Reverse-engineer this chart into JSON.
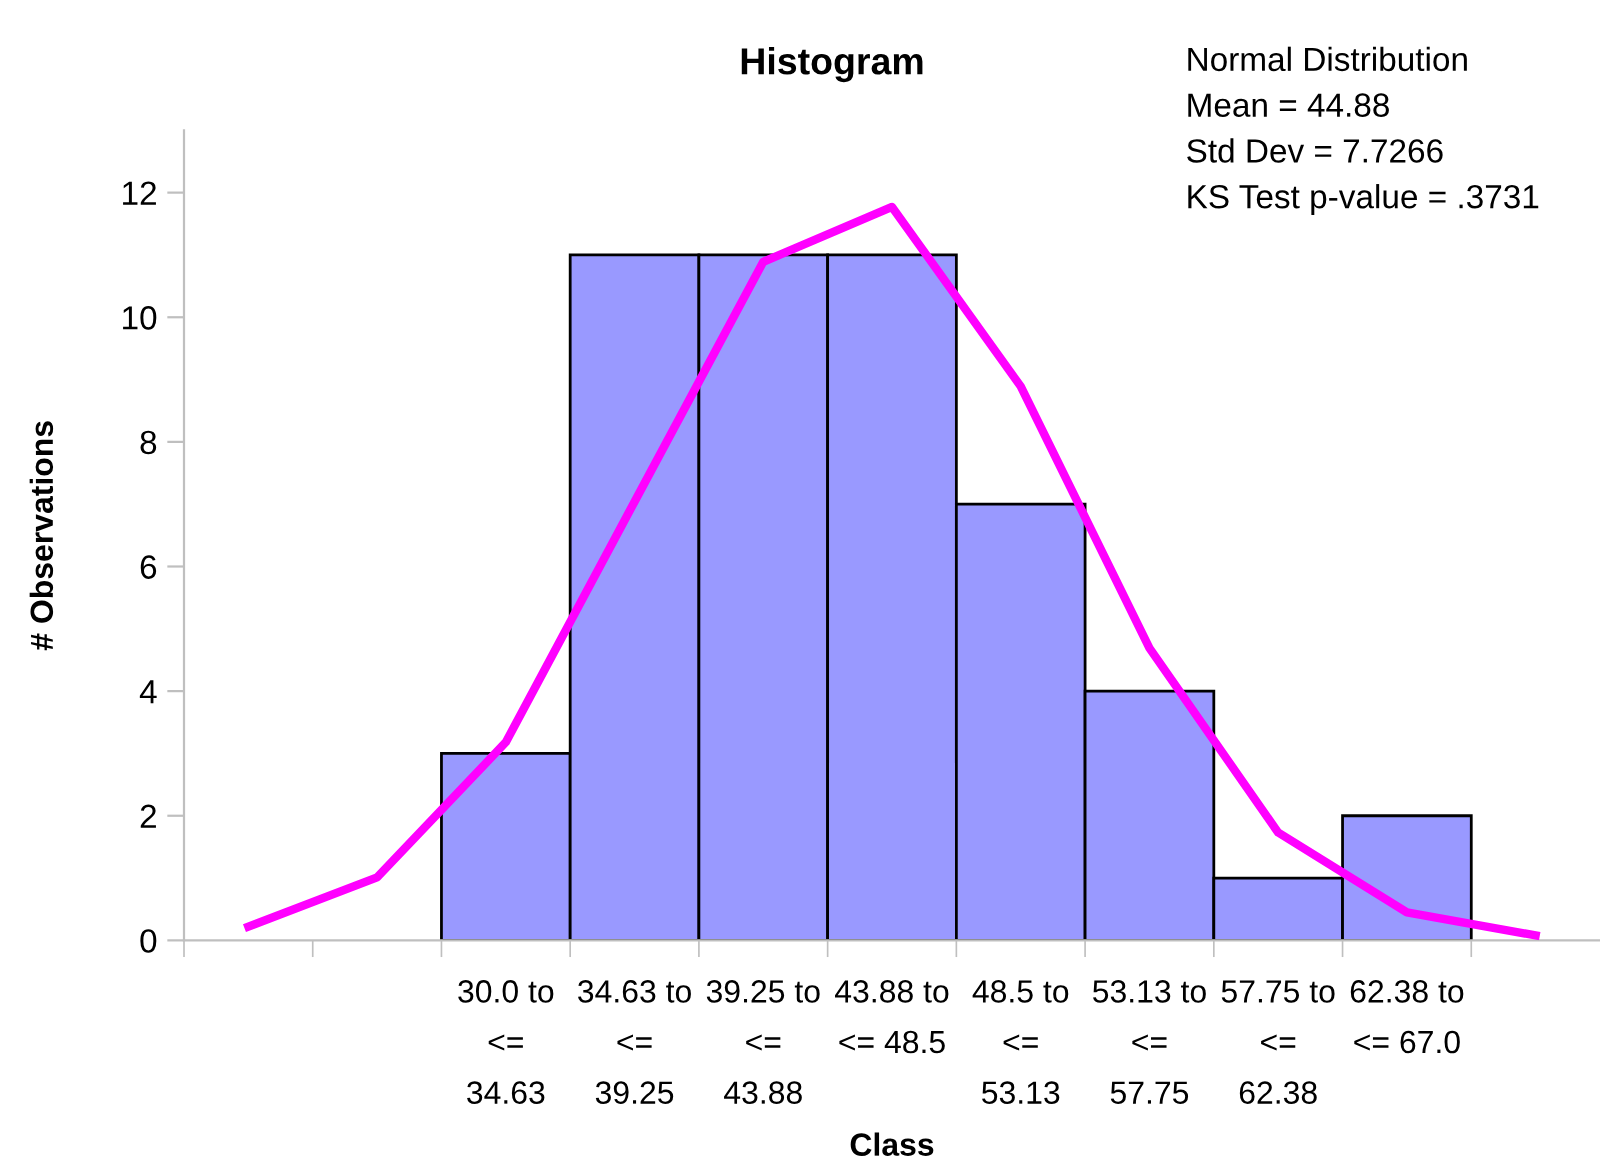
{
  "chart_data": {
    "type": "bar",
    "title": "Histogram",
    "xlabel": "Class",
    "ylabel": "# Observations",
    "categories": [
      null,
      null,
      "30.0 to\n<=\n34.63",
      "34.63 to\n<=\n39.25",
      "39.25 to\n<=\n43.88",
      "43.88 to\n<= 48.5",
      "48.5 to\n<=\n53.13",
      "53.13 to\n<=\n57.75",
      "57.75 to\n<=\n62.38",
      "62.38 to\n<= 67.0",
      null
    ],
    "series": [
      {
        "type": "bar",
        "color": "#9999ff",
        "values": [
          null,
          null,
          3,
          11,
          11,
          11,
          7,
          4,
          1,
          2,
          null
        ]
      },
      {
        "type": "line",
        "color": "#ff00ff",
        "values": [
          0.22,
          1.01,
          3.18,
          7.04,
          10.89,
          11.77,
          8.89,
          4.69,
          1.73,
          0.45,
          0.08
        ]
      }
    ],
    "ylim": [
      0,
      13
    ],
    "yticks": [
      0,
      2,
      4,
      6,
      8,
      10,
      12
    ],
    "grid": false,
    "legend": false,
    "annotations": [
      "Normal Distribution",
      "Mean = 44.88",
      "Std Dev = 7.7266",
      "KS Test p-value = .3731"
    ]
  }
}
